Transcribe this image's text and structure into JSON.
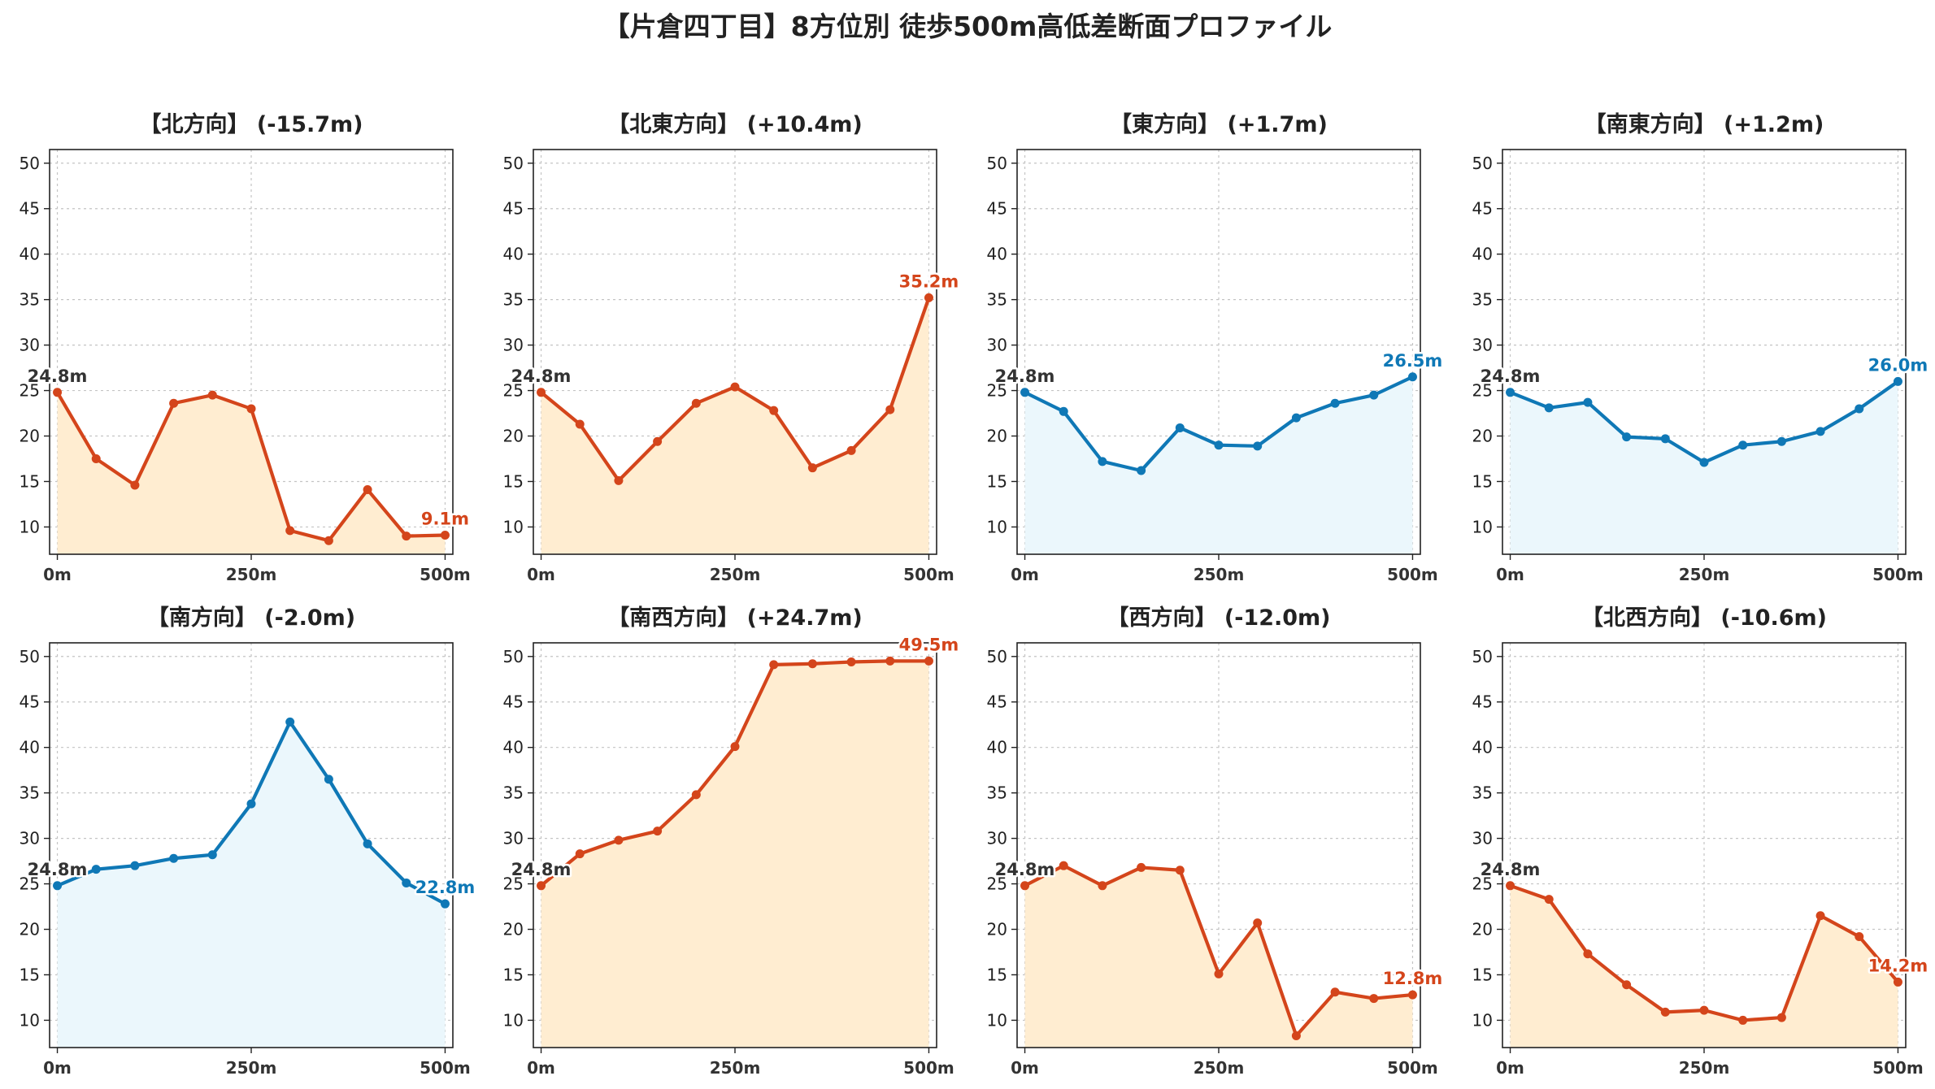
{
  "title": "【片倉四丁目】8方位別 徒歩500m高低差断面プロファイル",
  "colors": {
    "down": "#d4451b",
    "down_fill": "#ffedd1",
    "up": "#0f78b6",
    "up_fill": "#ebf7fc",
    "start_label": "#333333"
  },
  "chart_data": [
    {
      "type": "area",
      "title": "【北方向】 (-15.7m)",
      "x": [
        0,
        50,
        100,
        150,
        200,
        250,
        300,
        350,
        400,
        450,
        500
      ],
      "values": [
        24.8,
        17.5,
        14.6,
        23.6,
        24.5,
        23.0,
        9.6,
        8.5,
        14.1,
        9.0,
        9.1
      ],
      "xticks": [
        "0m",
        "250m",
        "500m"
      ],
      "yticks": [
        "10",
        "15",
        "20",
        "25",
        "30",
        "35",
        "40",
        "45",
        "50"
      ],
      "ylim": [
        7,
        51.5
      ],
      "xlim": [
        -10,
        510
      ],
      "start_label": "24.8m",
      "end_label": "9.1m",
      "color_key": "down",
      "grid": true
    },
    {
      "type": "area",
      "title": "【北東方向】 (+10.4m)",
      "x": [
        0,
        50,
        100,
        150,
        200,
        250,
        300,
        350,
        400,
        450,
        500
      ],
      "values": [
        24.8,
        21.3,
        15.1,
        19.4,
        23.6,
        25.4,
        22.8,
        16.5,
        18.4,
        22.9,
        35.2
      ],
      "xticks": [
        "0m",
        "250m",
        "500m"
      ],
      "yticks": [
        "10",
        "15",
        "20",
        "25",
        "30",
        "35",
        "40",
        "45",
        "50"
      ],
      "ylim": [
        7,
        51.5
      ],
      "xlim": [
        -10,
        510
      ],
      "start_label": "24.8m",
      "end_label": "35.2m",
      "color_key": "down",
      "grid": true
    },
    {
      "type": "area",
      "title": "【東方向】 (+1.7m)",
      "x": [
        0,
        50,
        100,
        150,
        200,
        250,
        300,
        350,
        400,
        450,
        500
      ],
      "values": [
        24.8,
        22.7,
        17.2,
        16.2,
        20.9,
        19.0,
        18.9,
        22.0,
        23.6,
        24.5,
        26.5
      ],
      "xticks": [
        "0m",
        "250m",
        "500m"
      ],
      "yticks": [
        "10",
        "15",
        "20",
        "25",
        "30",
        "35",
        "40",
        "45",
        "50"
      ],
      "ylim": [
        7,
        51.5
      ],
      "xlim": [
        -10,
        510
      ],
      "start_label": "24.8m",
      "end_label": "26.5m",
      "color_key": "up",
      "grid": true
    },
    {
      "type": "area",
      "title": "【南東方向】 (+1.2m)",
      "x": [
        0,
        50,
        100,
        150,
        200,
        250,
        300,
        350,
        400,
        450,
        500
      ],
      "values": [
        24.8,
        23.1,
        23.7,
        19.9,
        19.7,
        17.1,
        19.0,
        19.4,
        20.5,
        23.0,
        26.0
      ],
      "xticks": [
        "0m",
        "250m",
        "500m"
      ],
      "yticks": [
        "10",
        "15",
        "20",
        "25",
        "30",
        "35",
        "40",
        "45",
        "50"
      ],
      "ylim": [
        7,
        51.5
      ],
      "xlim": [
        -10,
        510
      ],
      "start_label": "24.8m",
      "end_label": "26.0m",
      "color_key": "up",
      "grid": true
    },
    {
      "type": "area",
      "title": "【南方向】 (-2.0m)",
      "x": [
        0,
        50,
        100,
        150,
        200,
        250,
        300,
        350,
        400,
        450,
        500
      ],
      "values": [
        24.8,
        26.6,
        27.0,
        27.8,
        28.2,
        33.8,
        42.8,
        36.5,
        29.4,
        25.1,
        22.8
      ],
      "xticks": [
        "0m",
        "250m",
        "500m"
      ],
      "yticks": [
        "10",
        "15",
        "20",
        "25",
        "30",
        "35",
        "40",
        "45",
        "50"
      ],
      "ylim": [
        7,
        51.5
      ],
      "xlim": [
        -10,
        510
      ],
      "start_label": "24.8m",
      "end_label": "22.8m",
      "color_key": "up",
      "grid": true
    },
    {
      "type": "area",
      "title": "【南西方向】 (+24.7m)",
      "x": [
        0,
        50,
        100,
        150,
        200,
        250,
        300,
        350,
        400,
        450,
        500
      ],
      "values": [
        24.8,
        28.3,
        29.8,
        30.8,
        34.8,
        40.1,
        49.1,
        49.2,
        49.4,
        49.5,
        49.5
      ],
      "xticks": [
        "0m",
        "250m",
        "500m"
      ],
      "yticks": [
        "10",
        "15",
        "20",
        "25",
        "30",
        "35",
        "40",
        "45",
        "50"
      ],
      "ylim": [
        7,
        51.5
      ],
      "xlim": [
        -10,
        510
      ],
      "start_label": "24.8m",
      "end_label": "49.5m",
      "color_key": "down",
      "grid": true
    },
    {
      "type": "area",
      "title": "【西方向】 (-12.0m)",
      "x": [
        0,
        50,
        100,
        150,
        200,
        250,
        300,
        350,
        400,
        450,
        500
      ],
      "values": [
        24.8,
        27.0,
        24.8,
        26.8,
        26.5,
        15.1,
        20.7,
        8.3,
        13.1,
        12.4,
        12.8
      ],
      "xticks": [
        "0m",
        "250m",
        "500m"
      ],
      "yticks": [
        "10",
        "15",
        "20",
        "25",
        "30",
        "35",
        "40",
        "45",
        "50"
      ],
      "ylim": [
        7,
        51.5
      ],
      "xlim": [
        -10,
        510
      ],
      "start_label": "24.8m",
      "end_label": "12.8m",
      "color_key": "down",
      "grid": true
    },
    {
      "type": "area",
      "title": "【北西方向】 (-10.6m)",
      "x": [
        0,
        50,
        100,
        150,
        200,
        250,
        300,
        350,
        400,
        450,
        500
      ],
      "values": [
        24.8,
        23.3,
        17.3,
        13.9,
        10.9,
        11.1,
        10.0,
        10.3,
        21.5,
        19.2,
        14.2
      ],
      "xticks": [
        "0m",
        "250m",
        "500m"
      ],
      "yticks": [
        "10",
        "15",
        "20",
        "25",
        "30",
        "35",
        "40",
        "45",
        "50"
      ],
      "ylim": [
        7,
        51.5
      ],
      "xlim": [
        -10,
        510
      ],
      "start_label": "24.8m",
      "end_label": "14.2m",
      "color_key": "down",
      "grid": true
    }
  ]
}
